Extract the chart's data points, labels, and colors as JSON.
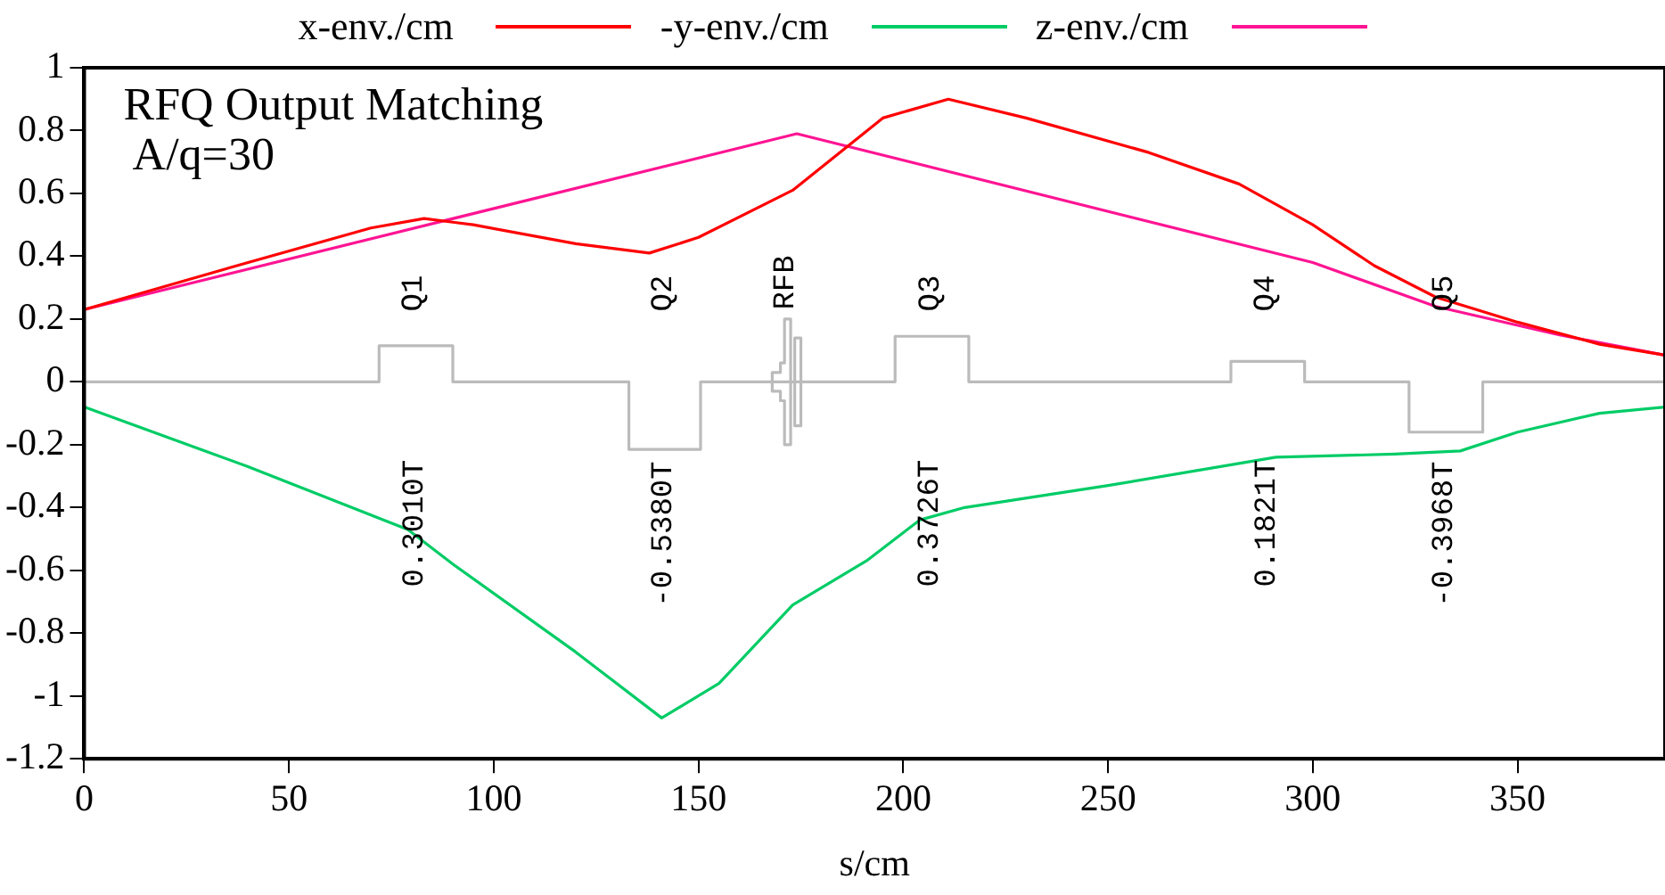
{
  "chart_data": {
    "type": "line",
    "xlabel": "s/cm",
    "xlim": [
      0,
      386
    ],
    "xticks": [
      0,
      50,
      100,
      150,
      200,
      250,
      300,
      350
    ],
    "ylim": [
      -1.2,
      1
    ],
    "yticks": [
      -1.2,
      -1,
      -0.8,
      -0.6,
      -0.4,
      -0.2,
      0,
      0.2,
      0.4,
      0.6,
      0.8,
      1
    ],
    "grid": false,
    "legend": "top",
    "marker": "none",
    "line_style": "solid",
    "series": [
      {
        "name": "x-env./cm",
        "color": "#ff0000",
        "x": [
          0,
          40,
          70,
          83,
          95,
          120,
          138,
          150,
          173,
          195,
          211,
          230,
          260,
          282,
          300,
          315,
          330,
          350,
          370,
          386
        ],
        "values": [
          0.23,
          0.38,
          0.49,
          0.52,
          0.5,
          0.44,
          0.41,
          0.46,
          0.61,
          0.84,
          0.9,
          0.84,
          0.73,
          0.63,
          0.5,
          0.37,
          0.27,
          0.19,
          0.12,
          0.085
        ]
      },
      {
        "name": "-y-env./cm",
        "color": "#00cc66",
        "x": [
          0,
          40,
          79,
          90,
          120,
          141,
          155,
          173,
          191,
          204,
          215,
          250,
          291,
          320,
          336,
          350,
          370,
          386
        ],
        "values": [
          -0.08,
          -0.27,
          -0.47,
          -0.58,
          -0.86,
          -1.07,
          -0.96,
          -0.71,
          -0.57,
          -0.44,
          -0.4,
          -0.33,
          -0.24,
          -0.23,
          -0.22,
          -0.16,
          -0.1,
          -0.08
        ]
      },
      {
        "name": "z-env./cm",
        "color": "#ff1493",
        "x": [
          0,
          174,
          300,
          330,
          360,
          386
        ],
        "values": [
          0.23,
          0.79,
          0.38,
          0.24,
          0.15,
          0.085
        ]
      },
      {
        "color": "#bbbbbb",
        "x": [
          0,
          72,
          72,
          90,
          90,
          133,
          133,
          150.5,
          150.5,
          168,
          168,
          170,
          170,
          171,
          171,
          172.5,
          172.5,
          171,
          171,
          170,
          170,
          168,
          168,
          168,
          168,
          173.5,
          173.5,
          175,
          175,
          173.5,
          173.5,
          177,
          177,
          198,
          198,
          216,
          216,
          280,
          280,
          298,
          298,
          323.5,
          323.5,
          341.5,
          341.5,
          386
        ],
        "values": [
          0,
          0,
          0.115,
          0.115,
          0,
          0,
          -0.215,
          -0.215,
          0,
          0,
          0.03,
          0.03,
          0.06,
          0.06,
          0.2,
          0.2,
          -0.2,
          -0.2,
          -0.06,
          -0.06,
          -0.03,
          -0.03,
          0,
          0,
          0,
          0,
          0.14,
          0.14,
          -0.14,
          -0.14,
          0,
          0,
          0,
          0,
          0.145,
          0.145,
          0,
          0,
          0.065,
          0.065,
          0,
          0,
          -0.16,
          -0.16,
          0,
          0
        ]
      }
    ],
    "annotations": [
      "RFQ Output Matching",
      " A/q=30",
      "Q1",
      "Q2",
      "RFB",
      "Q3",
      "Q4",
      "Q5",
      "0.3010T",
      "-0.5380T",
      "0.3726T",
      "0.1821T",
      "-0.3968T"
    ]
  }
}
